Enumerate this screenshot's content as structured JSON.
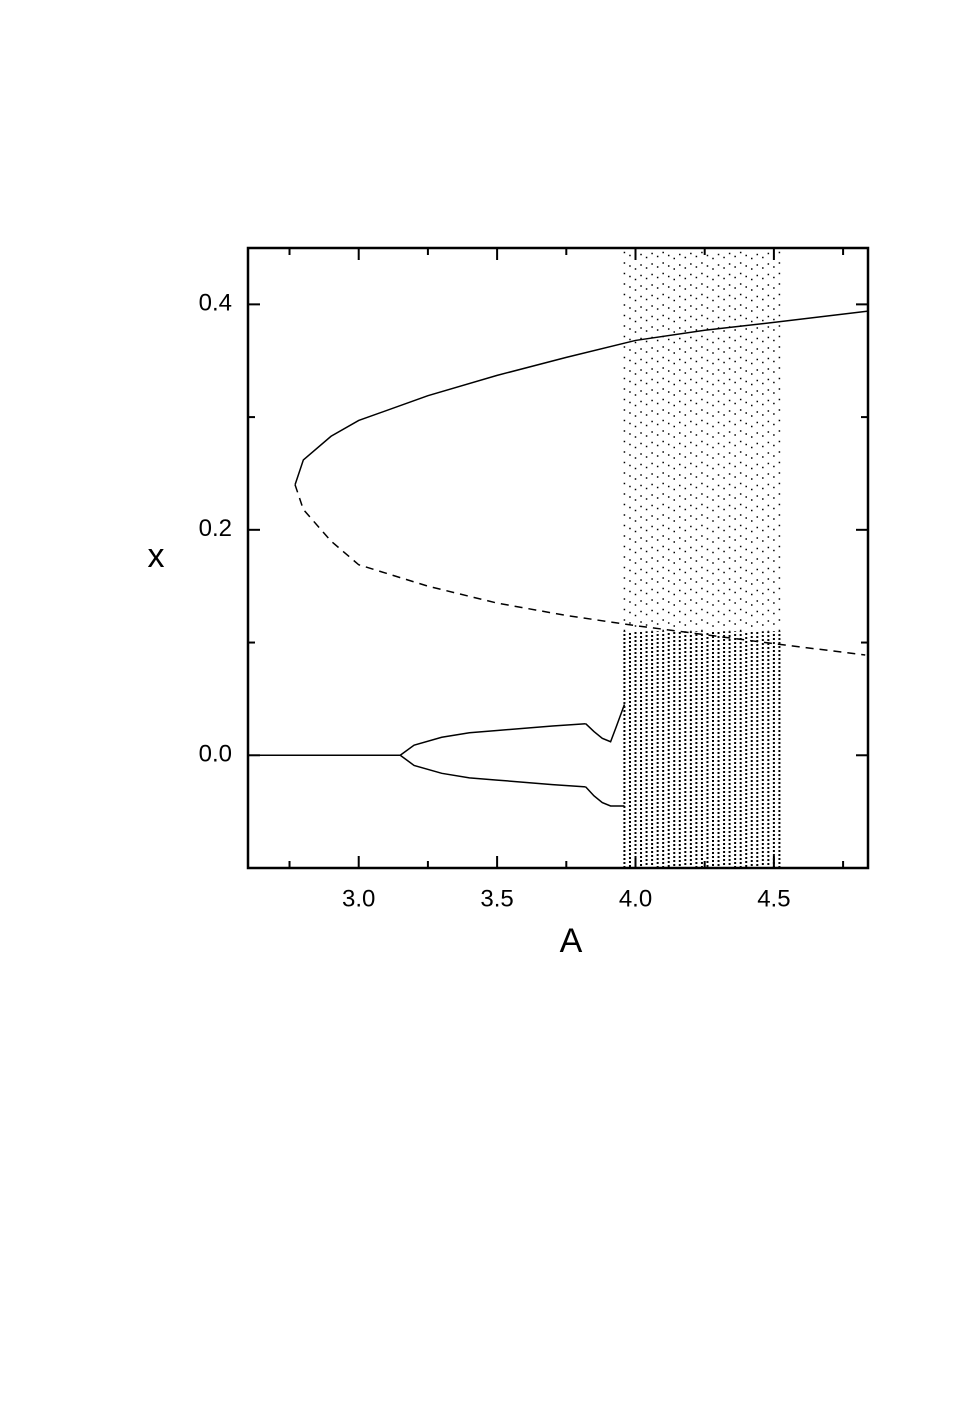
{
  "chart_data": {
    "type": "line",
    "xlabel": "A",
    "ylabel": "x",
    "xlim": [
      2.6,
      4.84
    ],
    "ylim": [
      -0.1,
      0.45
    ],
    "xticks": [
      {
        "value": 3,
        "label": "3.0"
      },
      {
        "value": 3.5,
        "label": "3.5"
      },
      {
        "value": 4,
        "label": "4.0"
      },
      {
        "value": 4.5,
        "label": "4.5"
      }
    ],
    "yticks": [
      {
        "value": 0,
        "label": "0.0"
      },
      0.2,
      0.4
    ],
    "xminorticks": [
      2.75,
      3.25,
      3.75,
      4.25,
      4.75
    ],
    "yminorticks": [
      0.1,
      0.3
    ],
    "color": "#000000",
    "series": [
      {
        "style": "solid",
        "x": [
          2.77,
          2.8,
          2.9,
          3.0,
          3.25,
          3.5,
          3.75,
          4.0,
          4.25,
          4.5,
          4.84
        ],
        "values": [
          0.24,
          0.262,
          0.283,
          0.297,
          0.319,
          0.337,
          0.353,
          0.368,
          0.377,
          0.384,
          0.394
        ]
      },
      {
        "style": "dashed",
        "x": [
          2.77,
          2.8,
          2.9,
          3.0,
          3.25,
          3.5,
          3.75,
          4.0,
          4.25,
          4.5,
          4.83
        ],
        "values": [
          0.24,
          0.218,
          0.19,
          0.169,
          0.15,
          0.135,
          0.124,
          0.115,
          0.107,
          0.099,
          0.089
        ]
      },
      {
        "style": "solid",
        "x": [
          2.6,
          3.15
        ],
        "values": [
          0,
          0
        ]
      },
      {
        "style": "solid",
        "x": [
          3.15,
          3.2,
          3.3,
          3.4,
          3.5,
          3.6,
          3.7,
          3.82
        ],
        "values": [
          0,
          0.009,
          0.016,
          0.02,
          0.022,
          0.024,
          0.026,
          0.028
        ]
      },
      {
        "style": "solid",
        "x": [
          3.15,
          3.2,
          3.3,
          3.4,
          3.5,
          3.6,
          3.7,
          3.82
        ],
        "values": [
          0,
          -0.009,
          -0.016,
          -0.02,
          -0.022,
          -0.024,
          -0.026,
          -0.028
        ]
      },
      {
        "style": "solid",
        "x": [
          3.82,
          3.85,
          3.88,
          3.91,
          3.93,
          3.96
        ],
        "values": [
          0.028,
          0.021,
          0.015,
          0.012,
          0.025,
          0.045
        ]
      },
      {
        "style": "solid",
        "x": [
          3.82,
          3.85,
          3.88,
          3.91,
          3.96
        ],
        "values": [
          -0.028,
          -0.036,
          -0.042,
          -0.045,
          -0.045
        ]
      },
      {
        "style": "dense-streaks",
        "low": -0.1,
        "high": 0.11,
        "x": [
          3.96,
          3.98,
          4.0,
          4.02,
          4.04,
          4.06,
          4.08,
          4.1,
          4.12,
          4.14,
          4.16,
          4.18,
          4.2,
          4.22,
          4.24,
          4.26,
          4.28,
          4.3,
          4.32,
          4.34,
          4.36,
          4.38,
          4.4,
          4.42,
          4.44,
          4.46,
          4.48,
          4.5,
          4.52
        ]
      },
      {
        "style": "sparse-streaks",
        "low": 0.11,
        "high": 0.45,
        "x": [
          3.96,
          3.98,
          4.0,
          4.02,
          4.04,
          4.06,
          4.08,
          4.1,
          4.12,
          4.14,
          4.16,
          4.18,
          4.2,
          4.22,
          4.24,
          4.26,
          4.28,
          4.3,
          4.32,
          4.34,
          4.36,
          4.38,
          4.4,
          4.42,
          4.44,
          4.46,
          4.48,
          4.5,
          4.52
        ]
      }
    ]
  }
}
